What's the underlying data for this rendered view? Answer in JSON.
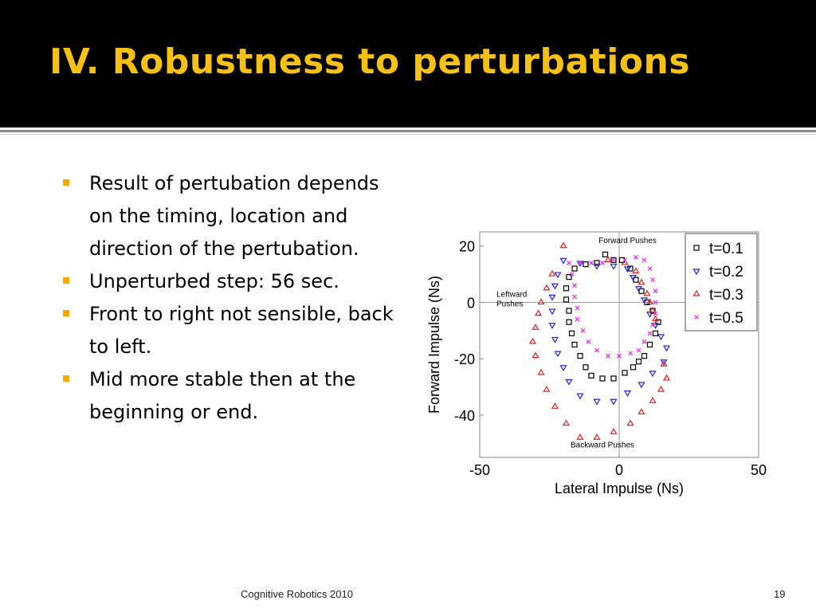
{
  "slide": {
    "title": "IV. Robustness to perturbations",
    "bullets": [
      "Result of pertubation depends on the timing, location and direction of the pertubation.",
      "Unperturbed step: 56 sec.",
      "Front to right not sensible, back to left.",
      "Mid more stable then at the beginning or end."
    ],
    "footer": "Cognitive Robotics 2010",
    "page_number": "19",
    "colors": {
      "header_bg": "#000000",
      "title": "#f5c118",
      "bullet_marker": "#f5a800"
    }
  },
  "chart_data": {
    "type": "scatter",
    "xlabel": "Lateral Impulse (Ns)",
    "ylabel": "Forward Impulse (Ns)",
    "xlim": [
      -50,
      50
    ],
    "ylim": [
      -55,
      25
    ],
    "xticks": [
      -50,
      0,
      50
    ],
    "yticks": [
      20,
      0,
      -20,
      -40
    ],
    "grid": false,
    "legend_position": "top-right",
    "annotations": [
      {
        "text": "Forward Pushes",
        "x": 3,
        "y": 21
      },
      {
        "text": "Leftward",
        "x": -44,
        "y": 2
      },
      {
        "text": "Pushes",
        "x": -44,
        "y": -1.5
      },
      {
        "text": "Backward Pushes",
        "x": -6,
        "y": -51.5
      }
    ],
    "series": [
      {
        "name": "t=0.1",
        "marker": "square",
        "color": "#000000",
        "points": [
          [
            -5,
            17
          ],
          [
            -2,
            15
          ],
          [
            -8,
            14
          ],
          [
            -12,
            13.5
          ],
          [
            -16,
            12
          ],
          [
            -18,
            9
          ],
          [
            -19,
            5
          ],
          [
            -19,
            1
          ],
          [
            -18,
            -3
          ],
          [
            -18,
            -7
          ],
          [
            -17,
            -11
          ],
          [
            -16,
            -15
          ],
          [
            -14,
            -19
          ],
          [
            -12,
            -23
          ],
          [
            -10,
            -26
          ],
          [
            -6,
            -27
          ],
          [
            -2,
            -27
          ],
          [
            2,
            -25
          ],
          [
            5,
            -23
          ],
          [
            7,
            -21
          ],
          [
            9,
            -19
          ],
          [
            11,
            -15
          ],
          [
            13,
            -11
          ],
          [
            14,
            -7
          ],
          [
            12,
            -3
          ],
          [
            10,
            0
          ],
          [
            8,
            4
          ],
          [
            6,
            8
          ],
          [
            4,
            12
          ],
          [
            1,
            15
          ]
        ]
      },
      {
        "name": "t=0.2",
        "marker": "triangle-down",
        "color": "#2222dd",
        "points": [
          [
            -20,
            15
          ],
          [
            -14,
            14
          ],
          [
            -8,
            13
          ],
          [
            -2,
            13
          ],
          [
            3,
            12
          ],
          [
            -22,
            10
          ],
          [
            -23,
            6
          ],
          [
            -24,
            2
          ],
          [
            -24,
            -3
          ],
          [
            -24,
            -8
          ],
          [
            -23,
            -13
          ],
          [
            -22,
            -18
          ],
          [
            -20,
            -23
          ],
          [
            -18,
            -28
          ],
          [
            -14,
            -33
          ],
          [
            -8,
            -35
          ],
          [
            -2,
            -35
          ],
          [
            3,
            -32
          ],
          [
            8,
            -29
          ],
          [
            12,
            -25
          ],
          [
            16,
            -21
          ],
          [
            17,
            -16
          ],
          [
            15,
            -12
          ],
          [
            13,
            -8
          ],
          [
            11,
            -4
          ],
          [
            9,
            1
          ],
          [
            7,
            5
          ],
          [
            5,
            9
          ]
        ]
      },
      {
        "name": "t=0.3",
        "marker": "triangle-up",
        "color": "#dd2222",
        "points": [
          [
            -20,
            20
          ],
          [
            -24,
            10
          ],
          [
            -26,
            5
          ],
          [
            -28,
            0
          ],
          [
            -29,
            -4
          ],
          [
            -30,
            -9
          ],
          [
            -31,
            -14
          ],
          [
            -30,
            -19
          ],
          [
            -28,
            -25
          ],
          [
            -26,
            -31
          ],
          [
            -23,
            -37
          ],
          [
            -19,
            -43
          ],
          [
            -14,
            -48
          ],
          [
            -8,
            -48
          ],
          [
            -2,
            -46
          ],
          [
            4,
            -43
          ],
          [
            8,
            -39
          ],
          [
            12,
            -35
          ],
          [
            15,
            -31
          ],
          [
            17,
            -27
          ],
          [
            16,
            -22
          ],
          [
            -4,
            15
          ],
          [
            2,
            14
          ],
          [
            6,
            11
          ],
          [
            8,
            7
          ],
          [
            10,
            3
          ],
          [
            11,
            0
          ],
          [
            12,
            -3
          ],
          [
            13,
            -6
          ]
        ]
      },
      {
        "name": "t=0.5",
        "marker": "x",
        "color": "#ee22ee",
        "points": [
          [
            -18,
            14
          ],
          [
            -14,
            14
          ],
          [
            -10,
            14
          ],
          [
            -6,
            14
          ],
          [
            -2,
            15
          ],
          [
            2,
            15
          ],
          [
            6,
            16
          ],
          [
            9,
            15
          ],
          [
            11,
            12
          ],
          [
            12,
            8
          ],
          [
            13,
            4
          ],
          [
            13,
            0
          ],
          [
            13,
            -4
          ],
          [
            12,
            -8
          ],
          [
            11,
            -11
          ],
          [
            9,
            -14
          ],
          [
            7,
            -17
          ],
          [
            4,
            -18
          ],
          [
            0,
            -19
          ],
          [
            -4,
            -19
          ],
          [
            -8,
            -17
          ],
          [
            -11,
            -14
          ],
          [
            -13,
            -10
          ],
          [
            -15,
            -6
          ],
          [
            -15,
            -2
          ],
          [
            -16,
            2
          ],
          [
            -16,
            6
          ],
          [
            -17,
            10
          ]
        ]
      }
    ]
  }
}
